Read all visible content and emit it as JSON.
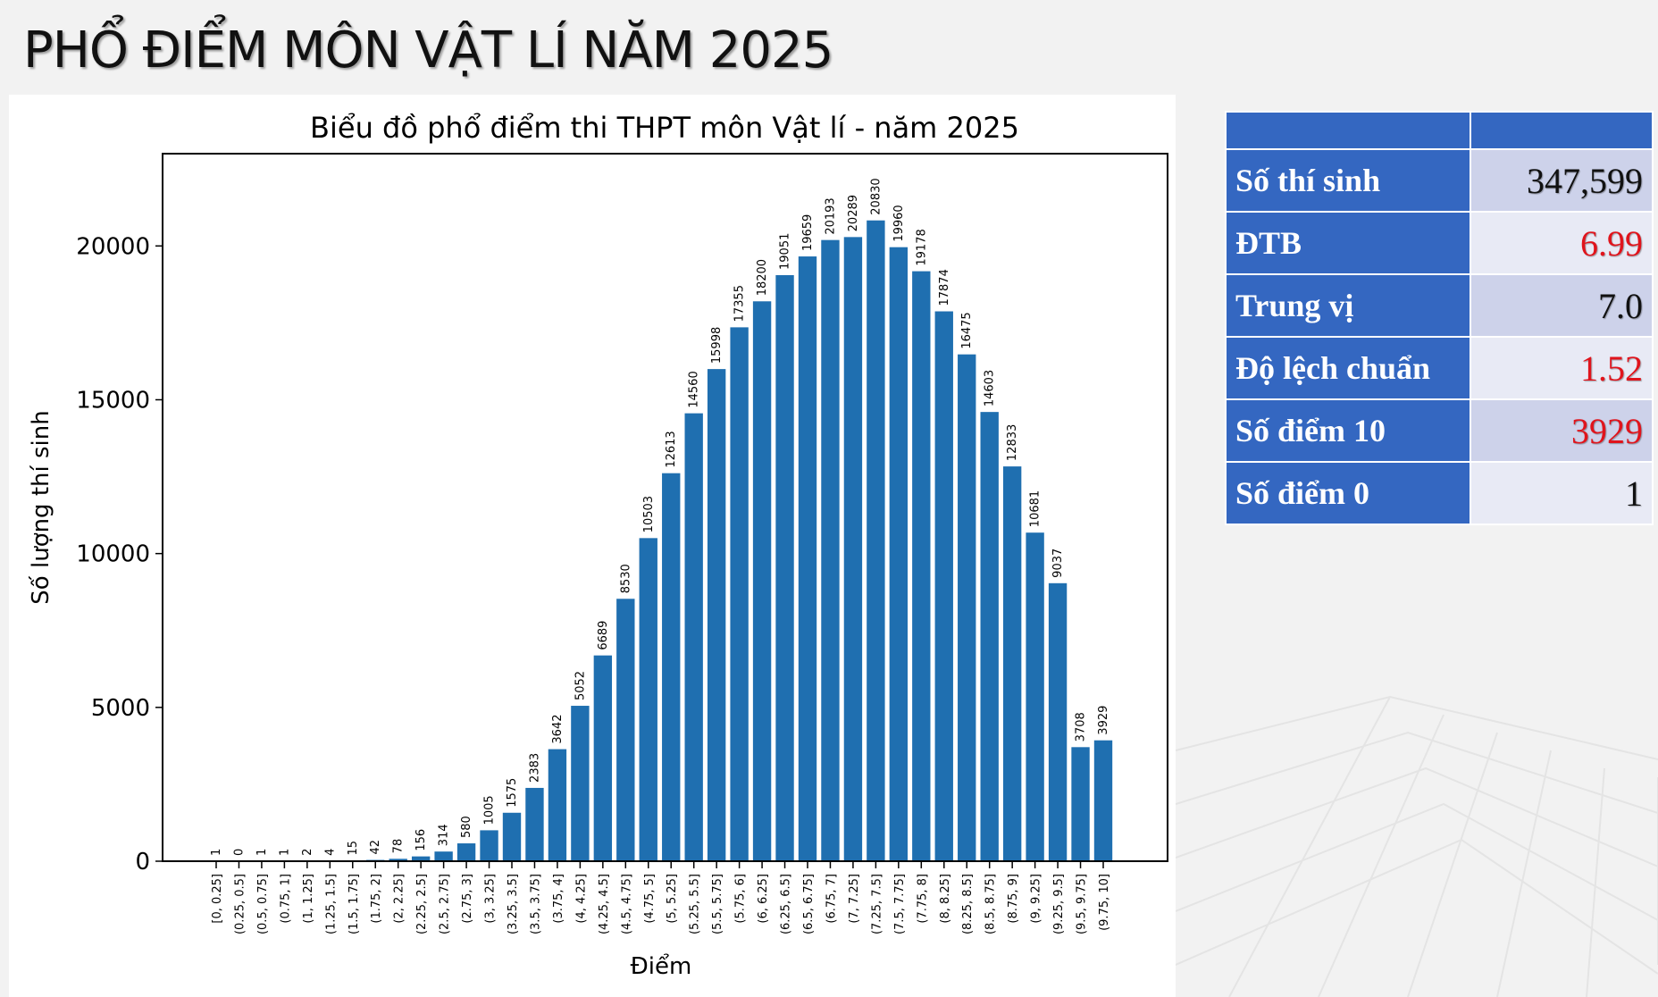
{
  "slide": {
    "title": "PHỔ ĐIỂM MÔN VẬT LÍ NĂM 2025"
  },
  "chart_data": {
    "type": "bar",
    "title": "Biểu đồ phổ điểm thi THPT môn Vật lí - năm 2025",
    "xlabel": "Điểm",
    "ylabel": "Số lượng thí sinh",
    "ylim": [
      0,
      23000
    ],
    "yticks": [
      0,
      5000,
      10000,
      15000,
      20000
    ],
    "bar_color": "#1f6fb0",
    "grid": false,
    "categories": [
      "[0, 0.25]",
      "(0.25, 0.5]",
      "(0.5, 0.75]",
      "(0.75, 1]",
      "(1, 1.25]",
      "(1.25, 1.5]",
      "(1.5, 1.75]",
      "(1.75, 2]",
      "(2, 2.25]",
      "(2.25, 2.5]",
      "(2.5, 2.75]",
      "(2.75, 3]",
      "(3, 3.25]",
      "(3.25, 3.5]",
      "(3.5, 3.75]",
      "(3.75, 4]",
      "(4, 4.25]",
      "(4.25, 4.5]",
      "(4.5, 4.75]",
      "(4.75, 5]",
      "(5, 5.25]",
      "(5.25, 5.5]",
      "(5.5, 5.75]",
      "(5.75, 6]",
      "(6, 6.25]",
      "(6.25, 6.5]",
      "(6.5, 6.75]",
      "(6.75, 7]",
      "(7, 7.25]",
      "(7.25, 7.5]",
      "(7.5, 7.75]",
      "(7.75, 8]",
      "(8, 8.25]",
      "(8.25, 8.5]",
      "(8.5, 8.75]",
      "(8.75, 9]",
      "(9, 9.25]",
      "(9.25, 9.5]",
      "(9.5, 9.75]",
      "(9.75, 10]"
    ],
    "values": [
      1,
      0,
      1,
      1,
      2,
      4,
      15,
      42,
      78,
      156,
      314,
      580,
      1005,
      1575,
      2383,
      3642,
      5052,
      6689,
      8530,
      10503,
      12613,
      14560,
      15998,
      17355,
      18200,
      19051,
      19659,
      20193,
      20289,
      20830,
      19960,
      19178,
      17874,
      16475,
      14603,
      12833,
      10681,
      9037,
      3708,
      3929
    ]
  },
  "stats_table": {
    "rows": [
      {
        "label": "Số thí sinh",
        "value": "347,599",
        "color": "#111111"
      },
      {
        "label": "ĐTB",
        "value": "6.99",
        "color": "#e0141c"
      },
      {
        "label": "Trung vị",
        "value": "7.0",
        "color": "#111111"
      },
      {
        "label": "Độ lệch chuẩn",
        "value": "1.52",
        "color": "#e0141c"
      },
      {
        "label": "Số điểm 10",
        "value": "3929",
        "color": "#e0141c"
      },
      {
        "label": "Số điểm 0",
        "value": "1",
        "color": "#111111"
      }
    ]
  }
}
